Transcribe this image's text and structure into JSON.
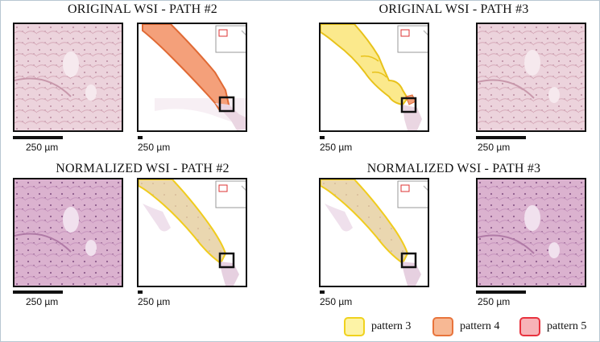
{
  "titles": {
    "orig_path2": "ORIGINAL WSI - PATH #2",
    "orig_path3": "ORIGINAL WSI - PATH #3",
    "norm_path2": "NORMALIZED WSI - PATH #2",
    "norm_path3": "NORMALIZED WSI - PATH #3"
  },
  "scale_label": "250 µm",
  "legend": [
    {
      "label": "pattern 3",
      "fill": "#fdf3a6",
      "border": "#f0d21e"
    },
    {
      "label": "pattern 4",
      "fill": "#f7b894",
      "border": "#e8743c"
    },
    {
      "label": "pattern 5",
      "fill": "#f7b3b8",
      "border": "#e8323e"
    }
  ],
  "colors": {
    "tissue_original": "#e9c9d3",
    "tissue_normalized": "#d7a9c8",
    "frame_border": "#b8c7d2"
  }
}
